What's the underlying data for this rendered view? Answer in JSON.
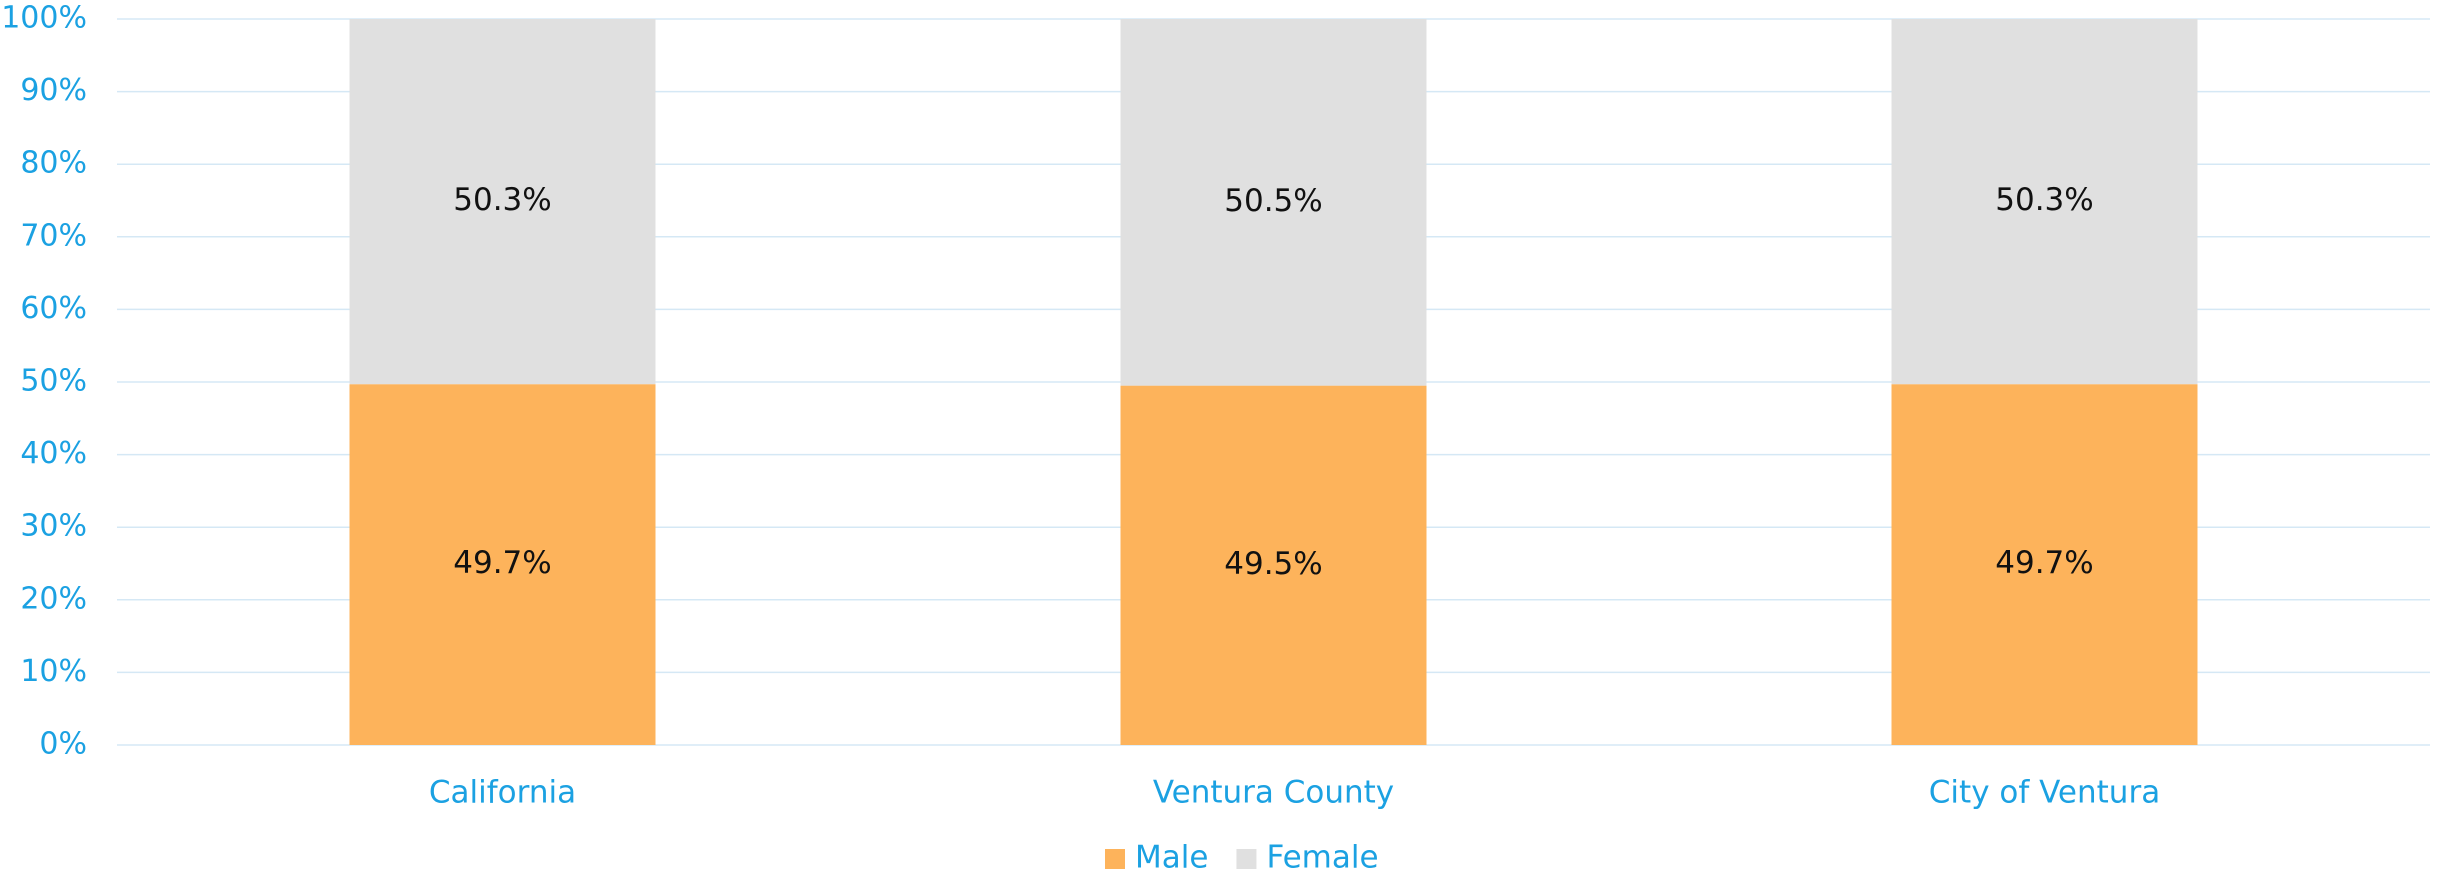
{
  "chart_data": {
    "type": "stacked_bar",
    "categories": [
      "California",
      "Ventura County",
      "City of Ventura"
    ],
    "series": [
      {
        "name": "Male",
        "color": "#fdb35b",
        "values": [
          49.7,
          49.5,
          49.7
        ],
        "value_labels": [
          "49.7%",
          "49.5%",
          "49.7%"
        ]
      },
      {
        "name": "Female",
        "color": "#e0e0e0",
        "values": [
          50.3,
          50.5,
          50.3
        ],
        "value_labels": [
          "50.3%",
          "50.5%",
          "50.3%"
        ]
      }
    ],
    "ylim": [
      0,
      100
    ],
    "yticks": [
      {
        "value": 0,
        "label": "0%"
      },
      {
        "value": 10,
        "label": "10%"
      },
      {
        "value": 20,
        "label": "20%"
      },
      {
        "value": 30,
        "label": "30%"
      },
      {
        "value": 40,
        "label": "40%"
      },
      {
        "value": 50,
        "label": "50%"
      },
      {
        "value": 60,
        "label": "60%"
      },
      {
        "value": 70,
        "label": "70%"
      },
      {
        "value": 80,
        "label": "80%"
      },
      {
        "value": 90,
        "label": "90%"
      },
      {
        "value": 100,
        "label": "100%"
      }
    ],
    "grid": true,
    "legend": "bottom"
  }
}
